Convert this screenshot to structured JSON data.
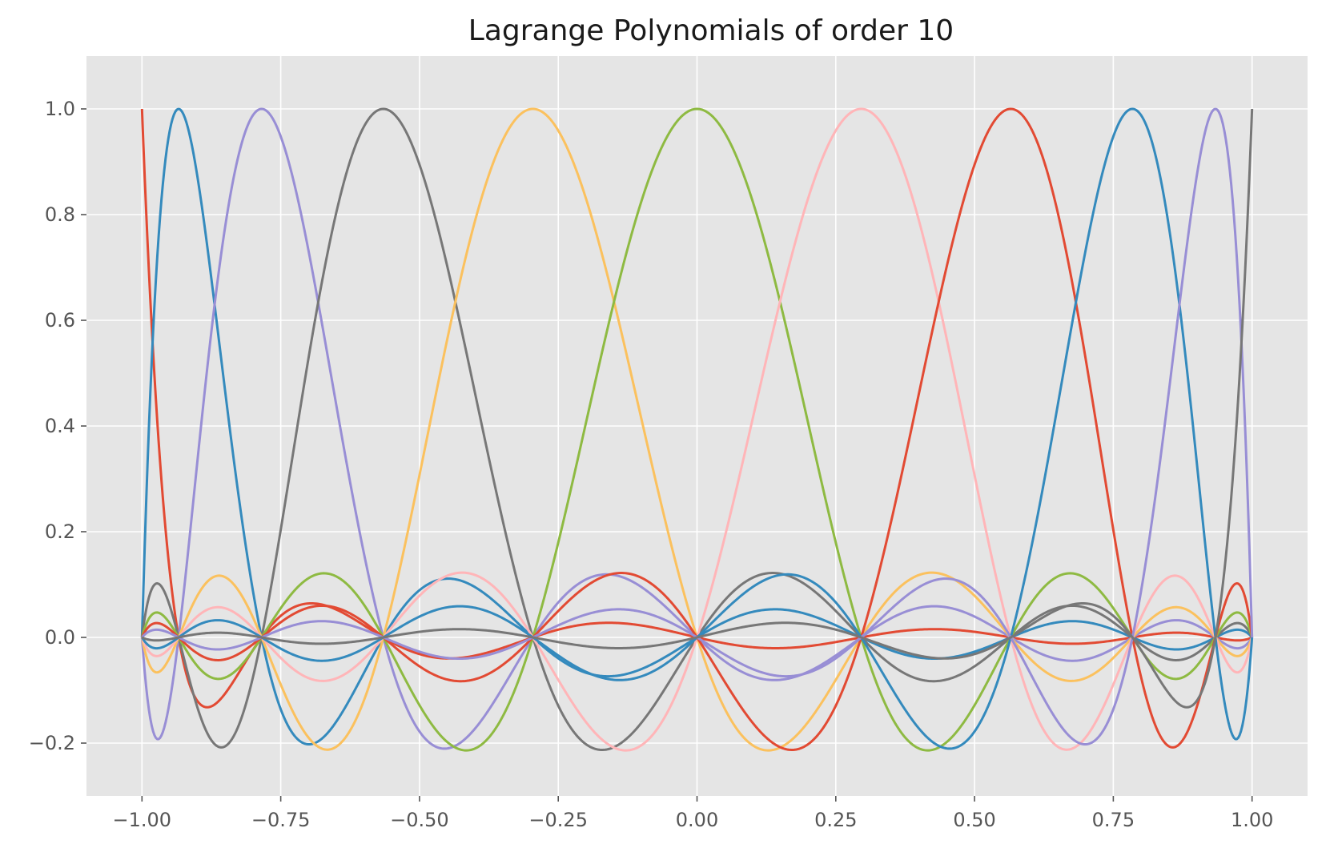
{
  "chart_data": {
    "type": "line",
    "title": "Lagrange Polynomials of order 10",
    "xlabel": "",
    "ylabel": "",
    "xlim": [
      -1.1,
      1.1
    ],
    "ylim": [
      -0.3,
      1.1
    ],
    "xticks": [
      -1.0,
      -0.75,
      -0.5,
      -0.25,
      0.0,
      0.25,
      0.5,
      0.75,
      1.0
    ],
    "xtick_labels": [
      "−1.00",
      "−0.75",
      "−0.50",
      "−0.25",
      "0.00",
      "0.25",
      "0.50",
      "0.75",
      "1.00"
    ],
    "yticks": [
      -0.2,
      0.0,
      0.2,
      0.4,
      0.6,
      0.8,
      1.0
    ],
    "ytick_labels": [
      "−0.2",
      "0.0",
      "0.2",
      "0.4",
      "0.6",
      "0.8",
      "1.0"
    ],
    "grid": true,
    "style": "ggplot",
    "nodes": [
      -1.0,
      -0.934,
      -0.7845,
      -0.5652,
      -0.2957,
      0.0,
      0.2957,
      0.5652,
      0.7845,
      0.934,
      1.0
    ],
    "series": [
      {
        "node_index": 0,
        "color": "#E24A33"
      },
      {
        "node_index": 1,
        "color": "#348ABD"
      },
      {
        "node_index": 2,
        "color": "#988ED5"
      },
      {
        "node_index": 3,
        "color": "#777777"
      },
      {
        "node_index": 4,
        "color": "#FBC15E"
      },
      {
        "node_index": 5,
        "color": "#8EBA42"
      },
      {
        "node_index": 6,
        "color": "#FFB5B8"
      },
      {
        "node_index": 7,
        "color": "#E24A33"
      },
      {
        "node_index": 8,
        "color": "#348ABD"
      },
      {
        "node_index": 9,
        "color": "#988ED5"
      },
      {
        "node_index": 10,
        "color": "#777777"
      }
    ],
    "colors": {
      "plot_background": "#E5E5E5",
      "grid": "#FFFFFF",
      "page_background": "#FFFFFF"
    }
  }
}
